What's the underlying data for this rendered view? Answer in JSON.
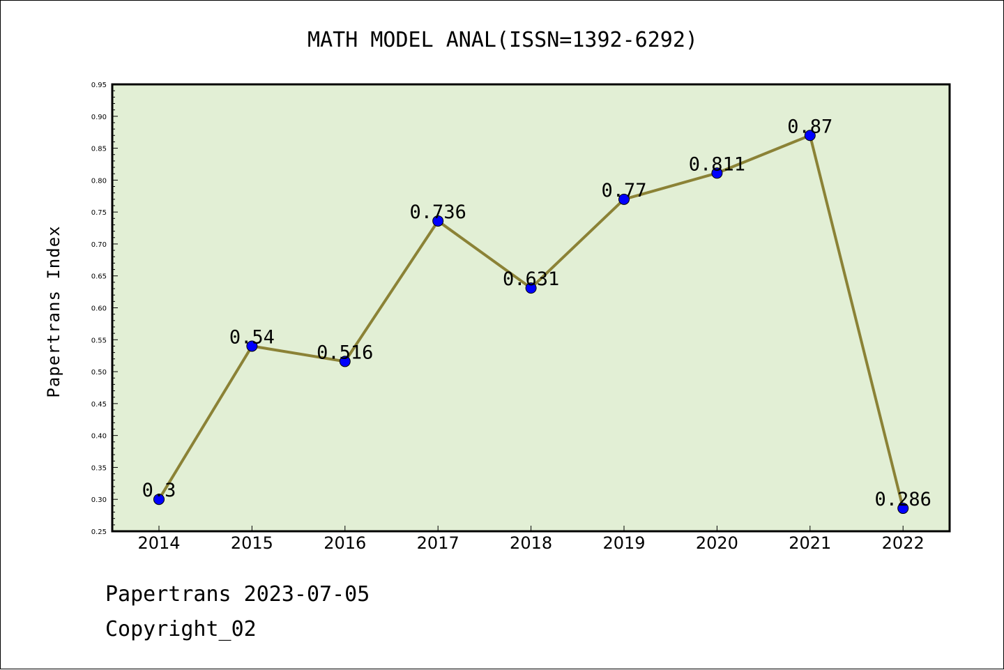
{
  "chart_data": {
    "type": "line",
    "title": "MATH MODEL ANAL(ISSN=1392-6292)",
    "xlabel": "",
    "ylabel": "Papertrans Index",
    "categories": [
      "2014",
      "2015",
      "2016",
      "2017",
      "2018",
      "2019",
      "2020",
      "2021",
      "2022"
    ],
    "values": [
      0.3,
      0.54,
      0.516,
      0.736,
      0.631,
      0.77,
      0.811,
      0.87,
      0.286
    ],
    "data_labels": [
      "0.3",
      "0.54",
      "0.516",
      "0.736",
      "0.631",
      "0.77",
      "0.811",
      "0.87",
      "0.286"
    ],
    "ylim": [
      0.25,
      0.95
    ],
    "yticks": [
      "0.25",
      "0.30",
      "0.35",
      "0.40",
      "0.45",
      "0.50",
      "0.55",
      "0.60",
      "0.65",
      "0.70",
      "0.75",
      "0.80",
      "0.85",
      "0.90",
      "0.95"
    ],
    "grid": false,
    "legend": "none",
    "colors": {
      "plot_background": "#e2efd5",
      "line": "#8b8236",
      "marker": "#0000ff",
      "frame": "#000000"
    }
  },
  "footer": {
    "line1": "Papertrans 2023-07-05",
    "line2": "Copyright_02"
  }
}
